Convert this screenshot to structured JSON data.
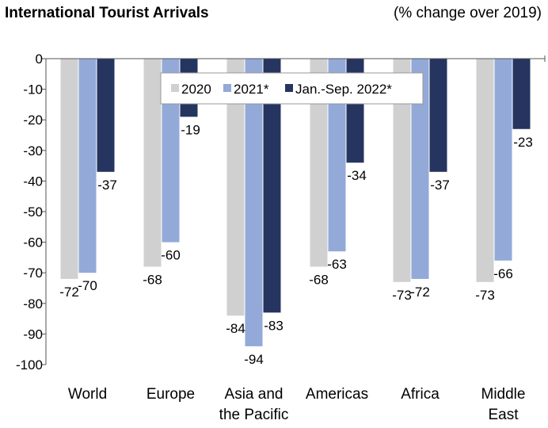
{
  "chart_data": {
    "type": "bar",
    "title": "International Tourist Arrivals",
    "subtitle": "(% change over 2019)",
    "categories": [
      "World",
      "Europe",
      "Asia and the Pacific",
      "Americas",
      "Africa",
      "Middle East"
    ],
    "category_lines": [
      [
        "World"
      ],
      [
        "Europe"
      ],
      [
        "Asia and",
        "the Pacific"
      ],
      [
        "Americas"
      ],
      [
        "Africa"
      ],
      [
        "Middle",
        "East"
      ]
    ],
    "series": [
      {
        "name": "2020",
        "color": "#d0d0d0",
        "values": [
          -72,
          -68,
          -84,
          -68,
          -73,
          -73
        ]
      },
      {
        "name": "2021*",
        "color": "#93a9d8",
        "values": [
          -70,
          -60,
          -94,
          -63,
          -72,
          -66
        ]
      },
      {
        "name": "Jan.-Sep. 2022*",
        "color": "#253560",
        "values": [
          -37,
          -19,
          -83,
          -34,
          -37,
          -23
        ]
      }
    ],
    "ylim": [
      -100,
      0
    ],
    "yticks": [
      0,
      -10,
      -20,
      -30,
      -40,
      -50,
      -60,
      -70,
      -80,
      -90,
      -100
    ],
    "grid": false,
    "legend": "top-center",
    "xlabel": "",
    "ylabel": ""
  }
}
